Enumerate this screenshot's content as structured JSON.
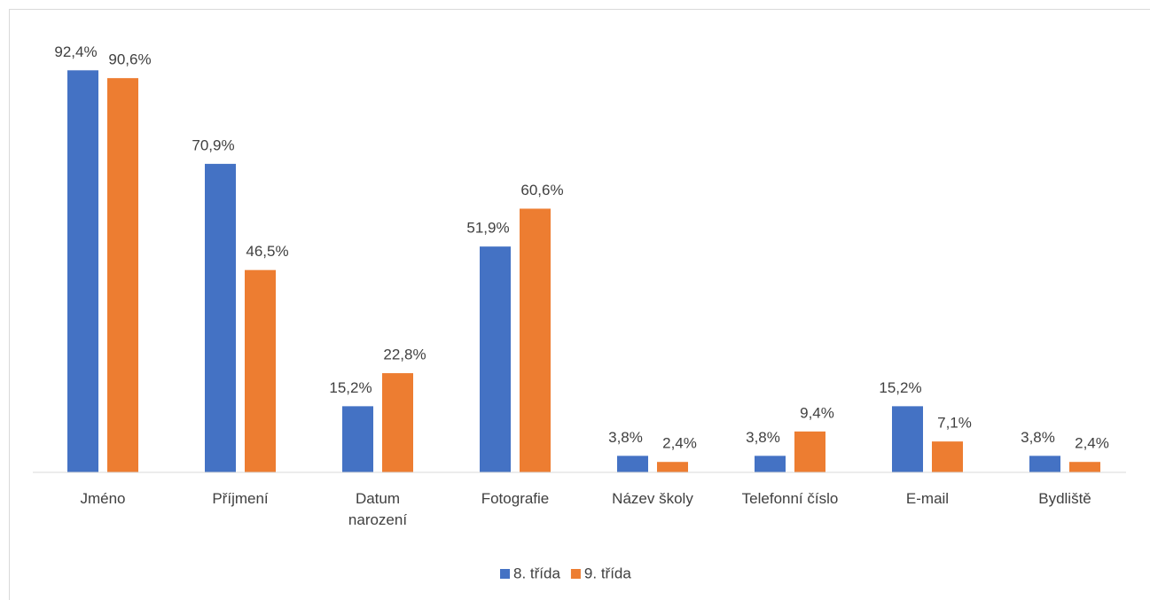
{
  "chart_data": {
    "type": "bar",
    "categories": [
      "Jméno",
      "Příjmení",
      "Datum\nnarození",
      "Fotografie",
      "Název školy",
      "Telefonní číslo",
      "E-mail",
      "Bydliště"
    ],
    "series": [
      {
        "name": "8. třída",
        "color": "#4472c4",
        "values": [
          92.4,
          70.9,
          15.2,
          51.9,
          3.8,
          3.8,
          15.2,
          3.8
        ],
        "value_labels": [
          "92,4%",
          "70,9%",
          "15,2%",
          "51,9%",
          "3,8%",
          "3,8%",
          "15,2%",
          "3,8%"
        ]
      },
      {
        "name": "9. třída",
        "color": "#ed7d31",
        "values": [
          90.6,
          46.5,
          22.8,
          60.6,
          2.4,
          9.4,
          7.1,
          2.4
        ],
        "value_labels": [
          "90,6%",
          "46,5%",
          "22,8%",
          "60,6%",
          "2,4%",
          "9,4%",
          "7,1%",
          "2,4%"
        ]
      }
    ],
    "ylim": [
      0,
      100
    ],
    "legend": "bottom"
  }
}
